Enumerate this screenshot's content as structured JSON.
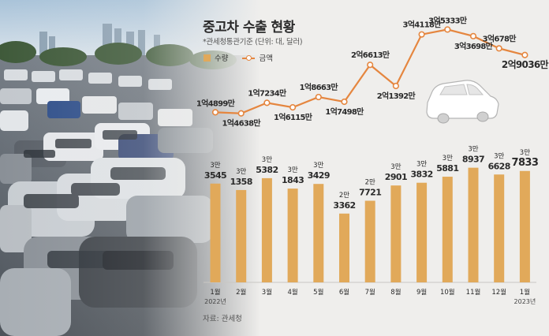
{
  "title": "중고차 수출 현황",
  "note": "*관세청통관기준 (단위: 대, 달러)",
  "legend": {
    "bar": "수량",
    "line": "금액"
  },
  "source": "자료: 관세청",
  "colors": {
    "bar": "#e1a95a",
    "line": "#e5863f",
    "text": "#2a2a2a"
  },
  "chart_data": {
    "type": "bar",
    "title": "중고차 수출 현황",
    "categories": [
      "1월",
      "2월",
      "3월",
      "4월",
      "5월",
      "6월",
      "7월",
      "8월",
      "9월",
      "10월",
      "11월",
      "12월",
      "1월"
    ],
    "year_labels": {
      "0": "2022년",
      "12": "2023년"
    },
    "series": [
      {
        "name": "수량",
        "kind": "bar",
        "values": [
          33545,
          31358,
          35382,
          31843,
          33429,
          23362,
          27721,
          32901,
          33832,
          35881,
          38937,
          36628,
          37833
        ],
        "labels": [
          [
            "3만",
            "3545"
          ],
          [
            "3만",
            "1358"
          ],
          [
            "3만",
            "5382"
          ],
          [
            "3만",
            "1843"
          ],
          [
            "3만",
            "3429"
          ],
          [
            "2만",
            "3362"
          ],
          [
            "2만",
            "7721"
          ],
          [
            "3만",
            "2901"
          ],
          [
            "3만",
            "3832"
          ],
          [
            "3만",
            "5881"
          ],
          [
            "3만",
            "8937"
          ],
          [
            "3만",
            "6628"
          ],
          [
            "3만",
            "7833"
          ]
        ]
      },
      {
        "name": "금액",
        "kind": "line",
        "values": [
          148990000,
          146380000,
          172340000,
          161150000,
          186630000,
          174980000,
          266130000,
          213920000,
          341180000,
          353330000,
          336980000,
          306780000,
          290360000
        ],
        "labels": [
          "1억4899만",
          "1억4638만",
          "1억7234만",
          "1억6115만",
          "1억8663만",
          "1억7498만",
          "2억6613만",
          "2억1392만",
          "3억4118만",
          "3억5333만",
          "3억3698만",
          "3억678만",
          "2억9036만"
        ]
      }
    ]
  }
}
